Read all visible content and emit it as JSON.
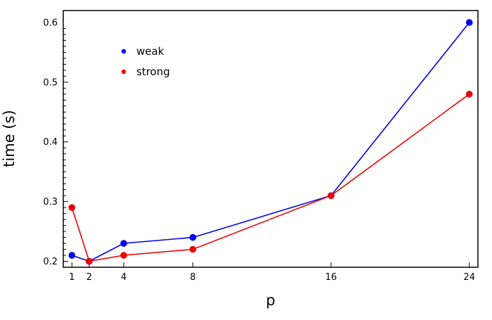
{
  "chart_data": {
    "type": "line",
    "xlabel": "p",
    "ylabel": "time (s)",
    "x": [
      1,
      2,
      4,
      8,
      16,
      24
    ],
    "x_ticks": [
      "1",
      "2",
      "4",
      "8",
      "16",
      "24"
    ],
    "xlim": [
      0.5,
      24.5
    ],
    "ylim": [
      0.19,
      0.62
    ],
    "y_ticks": [
      "0.2",
      "0.3",
      "0.4",
      "0.5",
      "0.6"
    ],
    "legend_position": "top-left",
    "grid": false,
    "series": [
      {
        "name": "weak",
        "color": "#0000ee",
        "values": [
          0.21,
          0.2,
          0.23,
          0.24,
          0.31,
          0.6
        ]
      },
      {
        "name": "strong",
        "color": "#ee0000",
        "values": [
          0.29,
          0.2,
          0.21,
          0.22,
          0.31,
          0.48
        ]
      }
    ]
  }
}
